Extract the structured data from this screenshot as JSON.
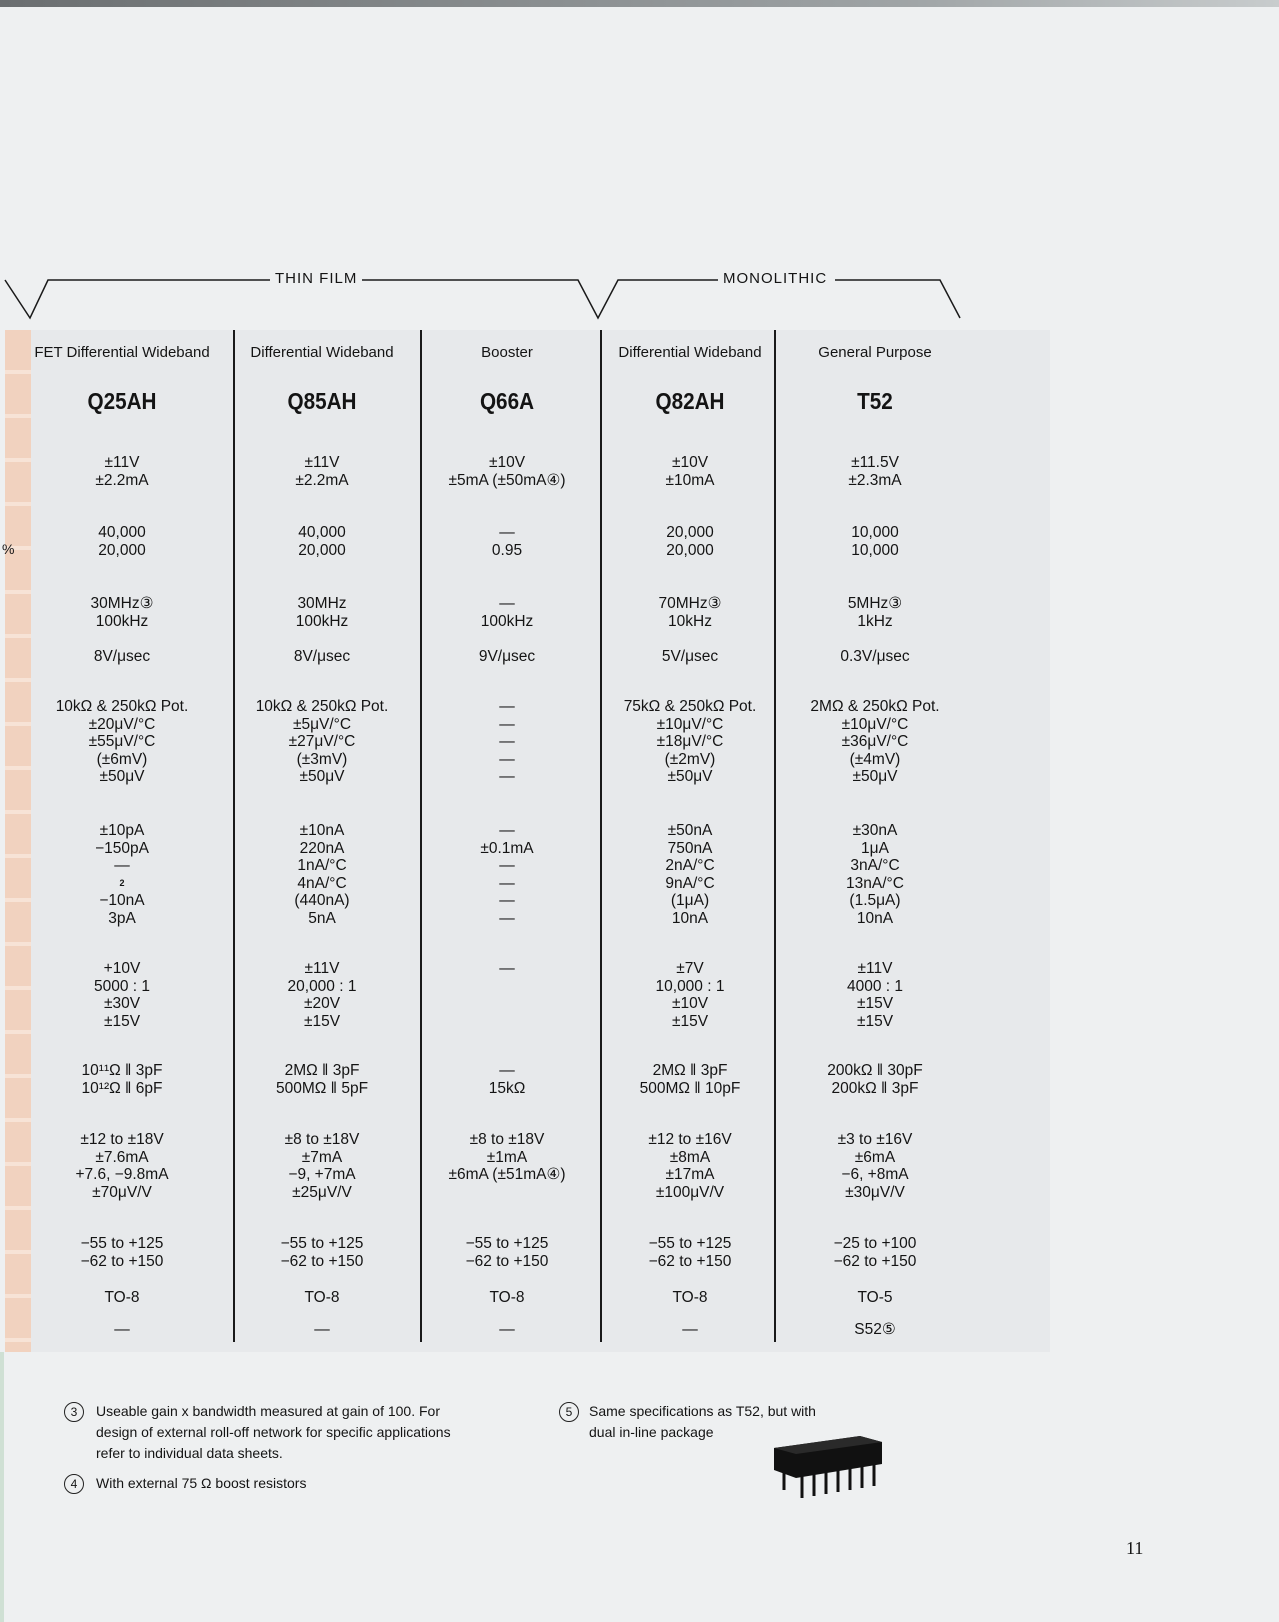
{
  "groups": {
    "thin_film": "THIN FILM",
    "monolithic": "MONOLITHIC"
  },
  "columns": [
    {
      "category": "FET Differential Wideband",
      "model": "Q25AH",
      "cells": [
        [
          "±11V",
          "±2.2mA"
        ],
        [
          "40,000",
          "20,000"
        ],
        [
          "30MHz③",
          "100kHz"
        ],
        [
          "8V/μsec"
        ],
        [
          "10kΩ & 250kΩ Pot.",
          "±20μV/°C",
          "±55μV/°C",
          "(±6mV)",
          "±50μV"
        ],
        [
          "±10pA",
          "−150pA",
          "—",
          "2",
          "−10nA",
          "3pA"
        ],
        [
          "+10V",
          "5000 : 1",
          "±30V",
          "±15V"
        ],
        [
          "10¹¹Ω ‖ 3pF",
          "10¹²Ω ‖ 6pF"
        ],
        [
          "±12 to ±18V",
          "±7.6mA",
          "+7.6, −9.8mA",
          "±70μV/V"
        ],
        [
          "−55 to +125",
          "−62 to +150"
        ],
        [
          "TO-8"
        ],
        [
          "—"
        ]
      ]
    },
    {
      "category": "Differential Wideband",
      "model": "Q85AH",
      "cells": [
        [
          "±11V",
          "±2.2mA"
        ],
        [
          "40,000",
          "20,000"
        ],
        [
          "30MHz",
          "100kHz"
        ],
        [
          "8V/μsec"
        ],
        [
          "10kΩ & 250kΩ Pot.",
          "±5μV/°C",
          "±27μV/°C",
          "(±3mV)",
          "±50μV"
        ],
        [
          "±10nA",
          "220nA",
          "1nA/°C",
          "4nA/°C",
          "(440nA)",
          "5nA"
        ],
        [
          "±11V",
          "20,000 : 1",
          "±20V",
          "±15V"
        ],
        [
          "2MΩ ‖ 3pF",
          "500MΩ ‖ 5pF"
        ],
        [
          "±8 to ±18V",
          "±7mA",
          "−9, +7mA",
          "±25μV/V"
        ],
        [
          "−55 to +125",
          "−62 to +150"
        ],
        [
          "TO-8"
        ],
        [
          "—"
        ]
      ]
    },
    {
      "category": "Booster",
      "model": "Q66A",
      "cells": [
        [
          "±10V",
          "±5mA (±50mA④)"
        ],
        [
          "—",
          "0.95"
        ],
        [
          "—",
          "100kHz"
        ],
        [
          "9V/μsec"
        ],
        [
          "—",
          "—",
          "—",
          "—",
          "—"
        ],
        [
          "—",
          "±0.1mA",
          "—",
          "—",
          "—",
          "—"
        ],
        [
          "—"
        ],
        [
          "—",
          "15kΩ"
        ],
        [
          "±8 to ±18V",
          "±1mA",
          "±6mA (±51mA④)"
        ],
        [
          "−55 to +125",
          "−62 to +150"
        ],
        [
          "TO-8"
        ],
        [
          "—"
        ]
      ]
    },
    {
      "category": "Differential Wideband",
      "model": "Q82AH",
      "cells": [
        [
          "±10V",
          "±10mA"
        ],
        [
          "20,000",
          "20,000"
        ],
        [
          "70MHz③",
          "10kHz"
        ],
        [
          "5V/μsec"
        ],
        [
          "75kΩ & 250kΩ Pot.",
          "±10μV/°C",
          "±18μV/°C",
          "(±2mV)",
          "±50μV"
        ],
        [
          "±50nA",
          "750nA",
          "2nA/°C",
          "9nA/°C",
          "(1μA)",
          "10nA"
        ],
        [
          "±7V",
          "10,000 : 1",
          "±10V",
          "±15V"
        ],
        [
          "2MΩ ‖ 3pF",
          "500MΩ ‖ 10pF"
        ],
        [
          "±12 to ±16V",
          "±8mA",
          "±17mA",
          "±100μV/V"
        ],
        [
          "−55 to +125",
          "−62 to +150"
        ],
        [
          "TO-8"
        ],
        [
          "—"
        ]
      ]
    },
    {
      "category": "General Purpose",
      "model": "T52",
      "cells": [
        [
          "±11.5V",
          "±2.3mA"
        ],
        [
          "10,000",
          "10,000"
        ],
        [
          "5MHz③",
          "1kHz"
        ],
        [
          "0.3V/μsec"
        ],
        [
          "2MΩ & 250kΩ Pot.",
          "±10μV/°C",
          "±36μV/°C",
          "(±4mV)",
          "±50μV"
        ],
        [
          "±30nA",
          "1μA",
          "3nA/°C",
          "13nA/°C",
          "(1.5μA)",
          "10nA"
        ],
        [
          "±11V",
          "4000 : 1",
          "±15V",
          "±15V"
        ],
        [
          "200kΩ ‖ 30pF",
          "200kΩ ‖ 3pF"
        ],
        [
          "±3 to ±16V",
          "±6mA",
          "−6, +8mA",
          "±30μV/V"
        ],
        [
          "−25 to +100",
          "−62 to +150"
        ],
        [
          "TO-5"
        ],
        [
          "S52⑤"
        ]
      ]
    }
  ],
  "side_marks": {
    "percent": "%"
  },
  "footnotes": [
    {
      "num": "3",
      "text": [
        "Useable gain x bandwidth measured at gain of 100. For",
        "design of external roll-off network for specific applications",
        "refer to individual data sheets."
      ]
    },
    {
      "num": "4",
      "text": [
        "With external 75 Ω boost resistors"
      ]
    },
    {
      "num": "5",
      "text": [
        "Same specifications as T52, but with",
        "dual in-line package"
      ]
    }
  ],
  "chip_image": "dual-in-line-package-icon",
  "page_number": "11"
}
